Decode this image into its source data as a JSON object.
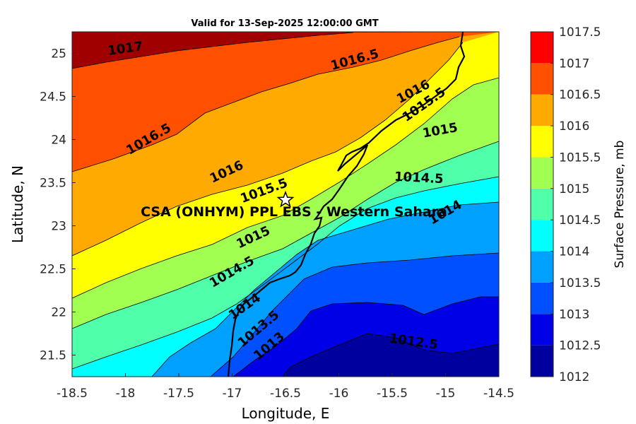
{
  "title": "Valid for 13-Sep-2025 12:00:00 GMT",
  "map": {
    "xlabel": "Longitude, E",
    "ylabel": "Latitude, N",
    "xlim": [
      -18.5,
      -14.5
    ],
    "ylim": [
      21.25,
      25.25
    ],
    "xticks": [
      "-18.5",
      "-18",
      "-17.5",
      "-17",
      "-16.5",
      "-16",
      "-15.5",
      "-15",
      "-14.5"
    ],
    "yticks": [
      "21.5",
      "22",
      "22.5",
      "23",
      "23.5",
      "24",
      "24.5",
      "25"
    ],
    "station_label": "CSA (ONHYM) PPL EBS  - Western Sahara",
    "station_marker": "star-icon",
    "station_lon": -16.5,
    "station_lat": 23.3,
    "isoline_labels": [
      {
        "text": "1017",
        "lon": -18.0,
        "lat": 25.05,
        "angle": -8
      },
      {
        "text": "1016.5",
        "lon": -15.85,
        "lat": 24.92,
        "angle": -15
      },
      {
        "text": "1016",
        "lon": -15.3,
        "lat": 24.55,
        "angle": -28
      },
      {
        "text": "1015.5",
        "lon": -15.2,
        "lat": 24.4,
        "angle": -35
      },
      {
        "text": "1016.5",
        "lon": -17.78,
        "lat": 24.0,
        "angle": -30
      },
      {
        "text": "1015",
        "lon": -15.05,
        "lat": 24.1,
        "angle": -10
      },
      {
        "text": "1016",
        "lon": -17.05,
        "lat": 23.62,
        "angle": -25
      },
      {
        "text": "1014.5",
        "lon": -15.25,
        "lat": 23.55,
        "angle": 3
      },
      {
        "text": "1015.5",
        "lon": -16.7,
        "lat": 23.4,
        "angle": -20
      },
      {
        "text": "1014",
        "lon": -15.0,
        "lat": 23.15,
        "angle": -30
      },
      {
        "text": "1015",
        "lon": -16.8,
        "lat": 22.86,
        "angle": -25
      },
      {
        "text": "1014.5",
        "lon": -17.0,
        "lat": 22.46,
        "angle": -30
      },
      {
        "text": "1014",
        "lon": -16.88,
        "lat": 22.06,
        "angle": -35
      },
      {
        "text": "1013.5",
        "lon": -16.75,
        "lat": 21.8,
        "angle": -40
      },
      {
        "text": "1013",
        "lon": -16.65,
        "lat": 21.6,
        "angle": -40
      },
      {
        "text": "1012.5",
        "lon": -15.3,
        "lat": 21.65,
        "angle": 8
      }
    ]
  },
  "colorbar": {
    "label": "Surface Pressure, mb",
    "ticks": [
      "1012",
      "1012.5",
      "1013",
      "1013.5",
      "1014",
      "1014.5",
      "1015",
      "1015.5",
      "1016",
      "1016.5",
      "1017",
      "1017.5"
    ],
    "colors": [
      "#00009f",
      "#0000e6",
      "#0050ff",
      "#00a0ff",
      "#00ffff",
      "#50ffaa",
      "#a0ff50",
      "#ffff00",
      "#ffaa00",
      "#ff5000",
      "#ff0000",
      "#a00000"
    ]
  }
}
